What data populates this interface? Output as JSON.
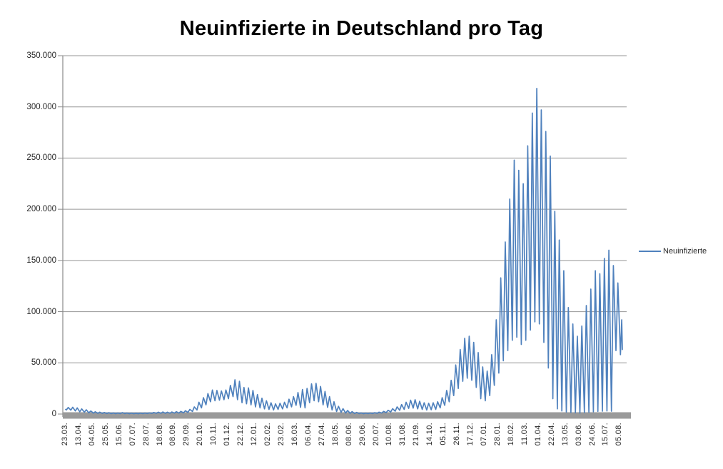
{
  "title": "Neuinfizierte in Deutschland pro Tag",
  "legend": {
    "label": "Neuinfizierte"
  },
  "colors": {
    "series_line": "#4F81BD",
    "gridline": "#969696",
    "axis_line": "#8A8A8A",
    "axis_bar": "#9A9A9A",
    "title_text": "#000000",
    "tick_text": "#262626",
    "background": "#FFFFFF"
  },
  "chart_data": {
    "type": "line",
    "title": "Neuinfizierte in Deutschland pro Tag",
    "xlabel": "",
    "ylabel": "",
    "ylim": [
      0,
      350000
    ],
    "grid": true,
    "legend_position": "right",
    "y_tick_values": [
      0,
      50000,
      100000,
      150000,
      200000,
      250000,
      300000,
      350000
    ],
    "y_tick_labels": [
      "0",
      "50.000",
      "100.000",
      "150.000",
      "200.000",
      "250.000",
      "300.000",
      "350.000"
    ],
    "x_tick_interval_days": 21,
    "x_tick_labels": [
      "23.03.",
      "13.04.",
      "04.05.",
      "25.05.",
      "15.06.",
      "07.07.",
      "28.07.",
      "18.08.",
      "08.09.",
      "29.09.",
      "20.10.",
      "10.11.",
      "01.12.",
      "22.12.",
      "12.01.",
      "02.02.",
      "23.02.",
      "16.03.",
      "06.04.",
      "27.04.",
      "18.05.",
      "08.06.",
      "29.06.",
      "20.07.",
      "10.08.",
      "31.08.",
      "21.09.",
      "14.10.",
      "05.11.",
      "26.11.",
      "17.12.",
      "07.01.",
      "28.01.",
      "18.02.",
      "11.03.",
      "01.04.",
      "22.04.",
      "13.05.",
      "03.06.",
      "24.06.",
      "15.07.",
      "05.08."
    ],
    "x_day_span": 865,
    "series": [
      {
        "name": "Neuinfizierte",
        "color": "#4F81BD",
        "points_day_value": [
          [
            0,
            4500
          ],
          [
            1,
            4000
          ],
          [
            4,
            6400
          ],
          [
            8,
            3800
          ],
          [
            11,
            6600
          ],
          [
            15,
            3000
          ],
          [
            18,
            6000
          ],
          [
            22,
            2200
          ],
          [
            25,
            5000
          ],
          [
            29,
            1800
          ],
          [
            32,
            4200
          ],
          [
            36,
            1200
          ],
          [
            39,
            3000
          ],
          [
            43,
            900
          ],
          [
            46,
            2200
          ],
          [
            50,
            700
          ],
          [
            53,
            1800
          ],
          [
            57,
            600
          ],
          [
            60,
            1500
          ],
          [
            64,
            500
          ],
          [
            67,
            1300
          ],
          [
            71,
            400
          ],
          [
            74,
            1100
          ],
          [
            78,
            350
          ],
          [
            81,
            1000
          ],
          [
            85,
            400
          ],
          [
            88,
            1400
          ],
          [
            92,
            400
          ],
          [
            95,
            1000
          ],
          [
            99,
            300
          ],
          [
            102,
            900
          ],
          [
            106,
            300
          ],
          [
            109,
            800
          ],
          [
            113,
            350
          ],
          [
            116,
            900
          ],
          [
            120,
            400
          ],
          [
            123,
            1000
          ],
          [
            127,
            500
          ],
          [
            130,
            1200
          ],
          [
            134,
            600
          ],
          [
            137,
            1500
          ],
          [
            141,
            700
          ],
          [
            144,
            1800
          ],
          [
            148,
            800
          ],
          [
            151,
            2000
          ],
          [
            155,
            700
          ],
          [
            158,
            1800
          ],
          [
            162,
            800
          ],
          [
            165,
            2000
          ],
          [
            169,
            900
          ],
          [
            172,
            2300
          ],
          [
            176,
            1000
          ],
          [
            179,
            2600
          ],
          [
            183,
            1200
          ],
          [
            186,
            3200
          ],
          [
            190,
            1600
          ],
          [
            193,
            4500
          ],
          [
            197,
            2500
          ],
          [
            200,
            7000
          ],
          [
            204,
            4000
          ],
          [
            207,
            11500
          ],
          [
            211,
            6000
          ],
          [
            214,
            16000
          ],
          [
            218,
            9000
          ],
          [
            221,
            20000
          ],
          [
            225,
            12000
          ],
          [
            228,
            23500
          ],
          [
            232,
            13000
          ],
          [
            235,
            23000
          ],
          [
            239,
            13500
          ],
          [
            242,
            22500
          ],
          [
            246,
            14000
          ],
          [
            249,
            23500
          ],
          [
            253,
            15000
          ],
          [
            256,
            28000
          ],
          [
            260,
            17000
          ],
          [
            263,
            33500
          ],
          [
            267,
            14000
          ],
          [
            270,
            32000
          ],
          [
            274,
            11000
          ],
          [
            277,
            26000
          ],
          [
            281,
            10000
          ],
          [
            284,
            25500
          ],
          [
            288,
            9000
          ],
          [
            291,
            23000
          ],
          [
            295,
            7000
          ],
          [
            298,
            19000
          ],
          [
            302,
            6000
          ],
          [
            305,
            15500
          ],
          [
            309,
            5000
          ],
          [
            312,
            13000
          ],
          [
            316,
            4500
          ],
          [
            319,
            11000
          ],
          [
            323,
            4000
          ],
          [
            326,
            10000
          ],
          [
            330,
            4500
          ],
          [
            333,
            10500
          ],
          [
            337,
            5000
          ],
          [
            340,
            11500
          ],
          [
            344,
            6000
          ],
          [
            347,
            14500
          ],
          [
            351,
            7000
          ],
          [
            354,
            17000
          ],
          [
            358,
            8500
          ],
          [
            361,
            21000
          ],
          [
            365,
            6500
          ],
          [
            368,
            24000
          ],
          [
            372,
            6000
          ],
          [
            375,
            25000
          ],
          [
            379,
            11000
          ],
          [
            382,
            29500
          ],
          [
            386,
            13000
          ],
          [
            389,
            30000
          ],
          [
            393,
            12000
          ],
          [
            396,
            27000
          ],
          [
            400,
            9000
          ],
          [
            403,
            22000
          ],
          [
            407,
            6500
          ],
          [
            410,
            17000
          ],
          [
            414,
            4000
          ],
          [
            417,
            12000
          ],
          [
            421,
            2500
          ],
          [
            424,
            7500
          ],
          [
            428,
            1700
          ],
          [
            431,
            5200
          ],
          [
            435,
            1000
          ],
          [
            438,
            3500
          ],
          [
            442,
            700
          ],
          [
            445,
            2400
          ],
          [
            449,
            500
          ],
          [
            452,
            1600
          ],
          [
            456,
            400
          ],
          [
            459,
            1100
          ],
          [
            463,
            350
          ],
          [
            466,
            900
          ],
          [
            470,
            400
          ],
          [
            473,
            1000
          ],
          [
            477,
            500
          ],
          [
            480,
            1300
          ],
          [
            484,
            700
          ],
          [
            487,
            1800
          ],
          [
            491,
            1000
          ],
          [
            494,
            2600
          ],
          [
            498,
            1400
          ],
          [
            501,
            3700
          ],
          [
            505,
            2000
          ],
          [
            508,
            5200
          ],
          [
            512,
            2800
          ],
          [
            515,
            7000
          ],
          [
            519,
            3700
          ],
          [
            522,
            9300
          ],
          [
            526,
            4500
          ],
          [
            529,
            11500
          ],
          [
            533,
            5500
          ],
          [
            536,
            13500
          ],
          [
            540,
            5800
          ],
          [
            543,
            14000
          ],
          [
            547,
            5000
          ],
          [
            550,
            12500
          ],
          [
            554,
            4500
          ],
          [
            557,
            11000
          ],
          [
            561,
            4000
          ],
          [
            564,
            10500
          ],
          [
            568,
            4200
          ],
          [
            571,
            11000
          ],
          [
            575,
            4500
          ],
          [
            578,
            12000
          ],
          [
            582,
            6000
          ],
          [
            585,
            16000
          ],
          [
            589,
            8500
          ],
          [
            592,
            23000
          ],
          [
            596,
            12000
          ],
          [
            599,
            33000
          ],
          [
            603,
            18000
          ],
          [
            606,
            48000
          ],
          [
            610,
            25000
          ],
          [
            613,
            63000
          ],
          [
            617,
            32000
          ],
          [
            620,
            74000
          ],
          [
            624,
            35000
          ],
          [
            627,
            76000
          ],
          [
            631,
            33000
          ],
          [
            634,
            70000
          ],
          [
            638,
            26000
          ],
          [
            641,
            60000
          ],
          [
            645,
            15000
          ],
          [
            648,
            46000
          ],
          [
            652,
            13000
          ],
          [
            655,
            42000
          ],
          [
            659,
            18000
          ],
          [
            662,
            58000
          ],
          [
            666,
            28000
          ],
          [
            669,
            92000
          ],
          [
            673,
            40000
          ],
          [
            676,
            133000
          ],
          [
            680,
            52000
          ],
          [
            683,
            168000
          ],
          [
            687,
            62000
          ],
          [
            690,
            210000
          ],
          [
            694,
            72000
          ],
          [
            697,
            248000
          ],
          [
            701,
            75000
          ],
          [
            704,
            238000
          ],
          [
            708,
            68000
          ],
          [
            711,
            225000
          ],
          [
            715,
            72000
          ],
          [
            718,
            262000
          ],
          [
            722,
            82000
          ],
          [
            725,
            294000
          ],
          [
            729,
            90000
          ],
          [
            732,
            318000
          ],
          [
            736,
            88000
          ],
          [
            739,
            297000
          ],
          [
            743,
            70000
          ],
          [
            746,
            276000
          ],
          [
            750,
            45000
          ],
          [
            753,
            252000
          ],
          [
            757,
            15000
          ],
          [
            760,
            198000
          ],
          [
            764,
            5000
          ],
          [
            767,
            170000
          ],
          [
            771,
            3000
          ],
          [
            774,
            140000
          ],
          [
            778,
            2000
          ],
          [
            781,
            104000
          ],
          [
            785,
            1500
          ],
          [
            788,
            88000
          ],
          [
            792,
            1200
          ],
          [
            795,
            76000
          ],
          [
            799,
            1000
          ],
          [
            802,
            86000
          ],
          [
            806,
            1400
          ],
          [
            809,
            106000
          ],
          [
            813,
            1800
          ],
          [
            816,
            122000
          ],
          [
            820,
            2200
          ],
          [
            823,
            140000
          ],
          [
            827,
            2600
          ],
          [
            830,
            137000
          ],
          [
            834,
            2800
          ],
          [
            837,
            152000
          ],
          [
            841,
            3000
          ],
          [
            844,
            160000
          ],
          [
            848,
            2800
          ],
          [
            851,
            145000
          ],
          [
            855,
            62000
          ],
          [
            858,
            128000
          ],
          [
            862,
            58000
          ],
          [
            864,
            92000
          ],
          [
            865,
            63000
          ]
        ]
      }
    ]
  }
}
